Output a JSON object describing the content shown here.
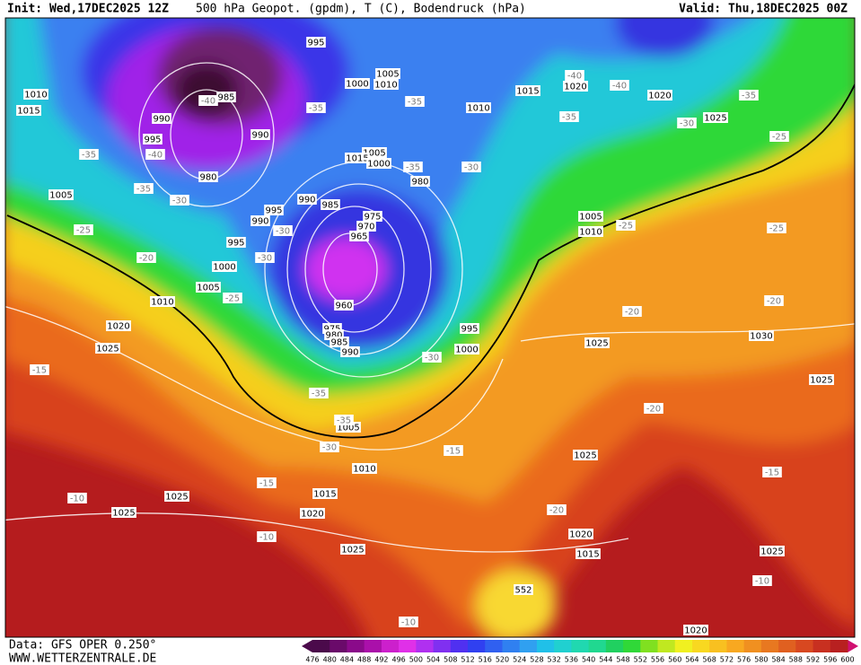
{
  "header": {
    "init": "Init: Wed,17DEC2025 12Z",
    "description": "500 hPa Geopot. (gpdm), T (C), Bodendruck (hPa)",
    "valid": "Valid: Thu,18DEC2025 00Z"
  },
  "footer": {
    "source": "Data: GFS OPER 0.250°",
    "website": "WWW.WETTERZENTRALE.DE"
  },
  "colorbar": {
    "labels": [
      476,
      480,
      484,
      488,
      492,
      496,
      500,
      504,
      508,
      512,
      516,
      520,
      524,
      528,
      532,
      536,
      540,
      544,
      548,
      552,
      556,
      560,
      564,
      568,
      572,
      576,
      580,
      584,
      588,
      592,
      596,
      600
    ],
    "colors": [
      "#4b0a4b",
      "#6a0a6a",
      "#8a0a8a",
      "#aa10aa",
      "#cc20cc",
      "#e030e8",
      "#b030f0",
      "#8030f0",
      "#5030f0",
      "#3040f0",
      "#3060f0",
      "#3080f0",
      "#30a0f0",
      "#20c0e8",
      "#20d0d0",
      "#20d8b0",
      "#20d890",
      "#20d060",
      "#30d838",
      "#80e020",
      "#c0e820",
      "#f0f020",
      "#f8d820",
      "#f8c020",
      "#f8a820",
      "#f09020",
      "#e87820",
      "#e06020",
      "#d84820",
      "#c83020",
      "#b82020"
    ]
  },
  "map": {
    "pressure_labels": [
      "995",
      "1005",
      "1010",
      "1000",
      "1010",
      "1015",
      "985",
      "990",
      "995",
      "990",
      "980",
      "1005",
      "1015",
      "1000",
      "980",
      "990",
      "985",
      "995",
      "990",
      "975",
      "970",
      "965",
      "1005",
      "995",
      "1000",
      "1005",
      "1010",
      "960",
      "975",
      "980",
      "985",
      "990",
      "995",
      "1000",
      "1020",
      "1025",
      "1005",
      "1010",
      "1015",
      "1020",
      "1025",
      "1025",
      "1025",
      "1025",
      "1025",
      "1020",
      "1015",
      "1020",
      "1025",
      "1025",
      "1030",
      "1015",
      "1010",
      "1020",
      "1020",
      "1025",
      "1005",
      "1010",
      "552"
    ],
    "temperature_labels": [
      "-40",
      "-35",
      "-35",
      "-40",
      "-40",
      "-35",
      "-35",
      "-30",
      "-25",
      "-35",
      "-40",
      "-35",
      "-30",
      "-35",
      "-30",
      "-25",
      "-30",
      "-30",
      "-25",
      "-20",
      "-25",
      "-25",
      "-20",
      "-20",
      "-15",
      "-30",
      "-35",
      "-35",
      "-30",
      "-15",
      "-15",
      "-10",
      "-10",
      "-20",
      "-20",
      "-15",
      "-10",
      "-10"
    ]
  }
}
